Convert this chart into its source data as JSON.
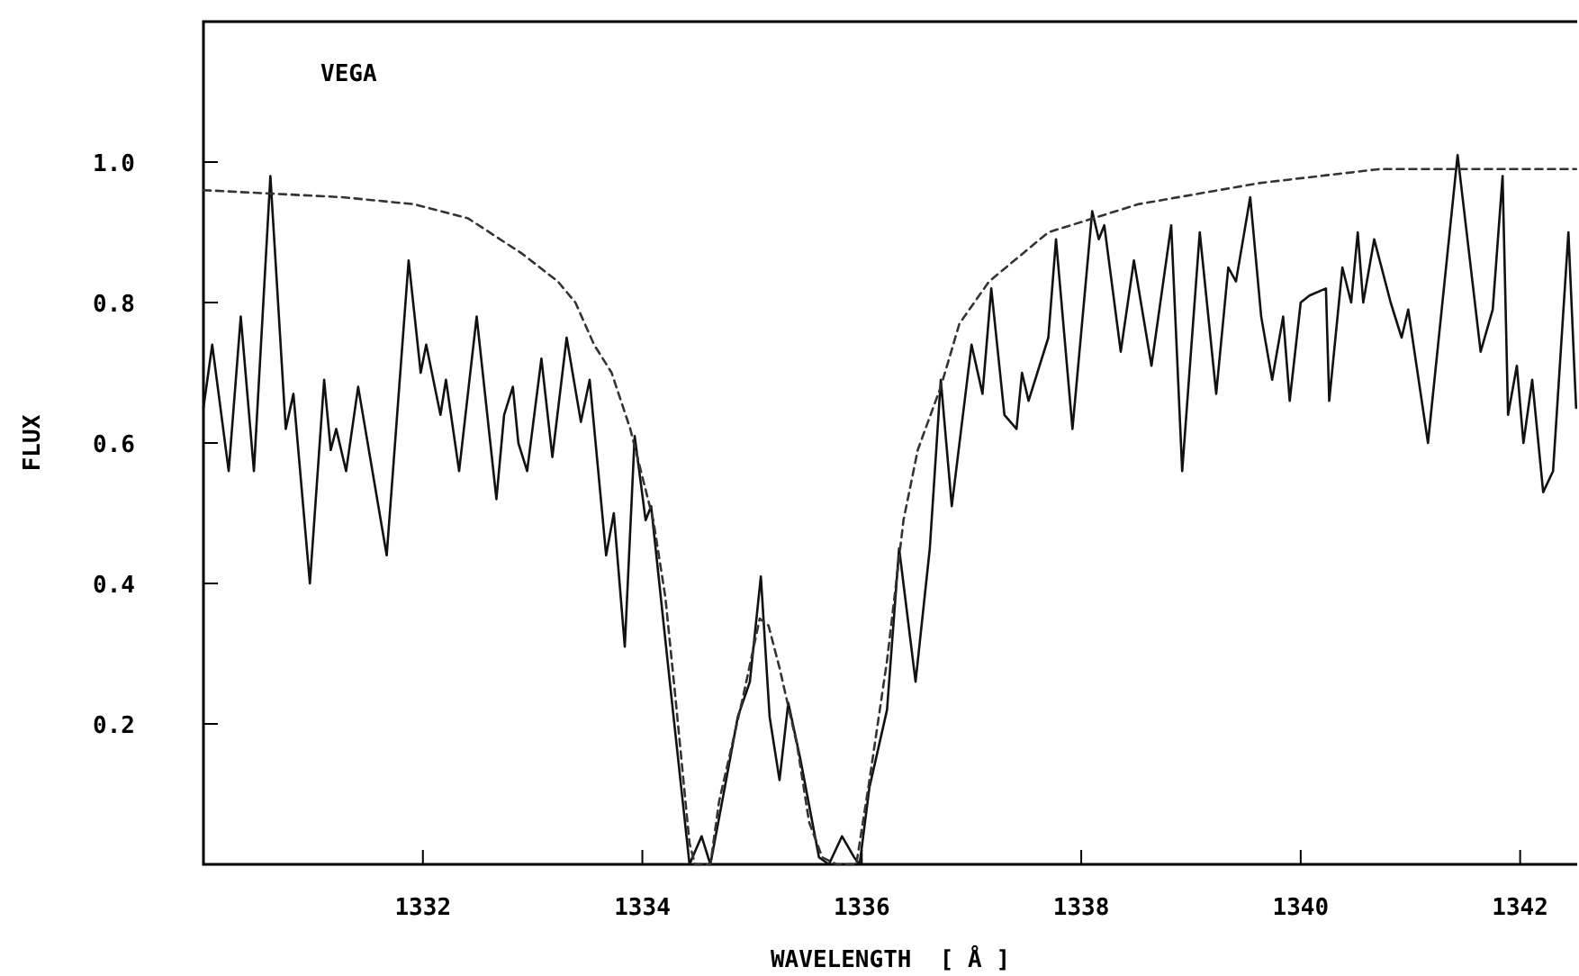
{
  "chart_data": {
    "type": "line",
    "xlabel": "WAVELENGTH  [ Å ]",
    "ylabel": "FLUX",
    "annotations": [
      "VEGA"
    ],
    "xlim": [
      1330,
      1342.52
    ],
    "ylim": [
      0,
      1.2
    ],
    "xticks": [
      1332,
      1334,
      1336,
      1338,
      1340,
      1342
    ],
    "yticks": [
      {
        "value": 0.2,
        "label": "0.2"
      },
      {
        "value": 0.4,
        "label": "0.4"
      },
      {
        "value": 0.6,
        "label": "0.6"
      },
      {
        "value": 0.8,
        "label": "0.8"
      },
      {
        "value": 1,
        "label": "1.0"
      }
    ],
    "marker": "none",
    "series": [
      {
        "color": "#111111",
        "line_style": "solid",
        "x": [
          1330.0,
          1330.08,
          1330.23,
          1330.34,
          1330.46,
          1330.61,
          1330.75,
          1330.82,
          1330.97,
          1331.1,
          1331.16,
          1331.21,
          1331.3,
          1331.41,
          1331.67,
          1331.87,
          1331.98,
          1332.03,
          1332.16,
          1332.21,
          1332.33,
          1332.49,
          1332.67,
          1332.74,
          1332.82,
          1332.87,
          1332.95,
          1333.08,
          1333.18,
          1333.31,
          1333.44,
          1333.52,
          1333.67,
          1333.74,
          1333.84,
          1333.93,
          1334.03,
          1334.08,
          1334.25,
          1334.43,
          1334.54,
          1334.62,
          1334.74,
          1334.87,
          1334.98,
          1335.08,
          1335.16,
          1335.25,
          1335.33,
          1335.44,
          1335.61,
          1335.7,
          1335.82,
          1335.93,
          1335.98,
          1336.07,
          1336.23,
          1336.34,
          1336.49,
          1336.62,
          1336.72,
          1336.82,
          1337.0,
          1337.1,
          1337.18,
          1337.3,
          1337.41,
          1337.46,
          1337.52,
          1337.7,
          1337.77,
          1337.92,
          1338.1,
          1338.16,
          1338.21,
          1338.36,
          1338.48,
          1338.64,
          1338.82,
          1338.92,
          1339.08,
          1339.23,
          1339.34,
          1339.41,
          1339.54,
          1339.64,
          1339.74,
          1339.84,
          1339.9,
          1340.0,
          1340.08,
          1340.23,
          1340.26,
          1340.38,
          1340.46,
          1340.52,
          1340.57,
          1340.67,
          1340.82,
          1340.92,
          1340.98,
          1341.16,
          1341.43,
          1341.64,
          1341.75,
          1341.84,
          1341.89,
          1341.97,
          1342.03,
          1342.11,
          1342.21,
          1342.3,
          1342.44,
          1342.51
        ],
        "values": [
          0.65,
          0.74,
          0.56,
          0.78,
          0.56,
          0.98,
          0.62,
          0.67,
          0.4,
          0.69,
          0.59,
          0.62,
          0.56,
          0.68,
          0.44,
          0.86,
          0.7,
          0.74,
          0.64,
          0.69,
          0.56,
          0.78,
          0.52,
          0.64,
          0.68,
          0.6,
          0.56,
          0.72,
          0.58,
          0.75,
          0.63,
          0.69,
          0.44,
          0.5,
          0.31,
          0.61,
          0.49,
          0.51,
          0.26,
          0,
          0.04,
          0,
          0.1,
          0.21,
          0.26,
          0.41,
          0.21,
          0.12,
          0.23,
          0.15,
          0.01,
          0,
          0.04,
          0.01,
          0,
          0.11,
          0.22,
          0.45,
          0.26,
          0.45,
          0.69,
          0.51,
          0.74,
          0.67,
          0.82,
          0.64,
          0.62,
          0.7,
          0.66,
          0.75,
          0.89,
          0.62,
          0.93,
          0.89,
          0.91,
          0.73,
          0.86,
          0.71,
          0.91,
          0.56,
          0.9,
          0.67,
          0.85,
          0.83,
          0.95,
          0.78,
          0.69,
          0.78,
          0.66,
          0.8,
          0.81,
          0.82,
          0.66,
          0.85,
          0.8,
          0.9,
          0.8,
          0.89,
          0.8,
          0.75,
          0.79,
          0.6,
          1.01,
          0.73,
          0.79,
          0.98,
          0.64,
          0.71,
          0.6,
          0.69,
          0.53,
          0.56,
          0.9,
          0.65
        ]
      },
      {
        "color": "#333333",
        "line_style": "dashed",
        "x": [
          1330.0,
          1331.26,
          1331.92,
          1332.41,
          1332.9,
          1333.23,
          1333.39,
          1333.56,
          1333.72,
          1333.89,
          1334.1,
          1334.21,
          1334.3,
          1334.43,
          1334.48,
          1334.62,
          1334.7,
          1334.92,
          1335.07,
          1335.15,
          1335.25,
          1335.41,
          1335.52,
          1335.64,
          1335.77,
          1335.95,
          1336.07,
          1336.23,
          1336.38,
          1336.51,
          1336.72,
          1336.89,
          1337.16,
          1337.7,
          1338.52,
          1339.62,
          1340.72,
          1342.51
        ],
        "values": [
          0.96,
          0.95,
          0.94,
          0.92,
          0.87,
          0.83,
          0.8,
          0.74,
          0.7,
          0.62,
          0.49,
          0.38,
          0.24,
          0.03,
          0,
          0,
          0.09,
          0.24,
          0.35,
          0.34,
          0.28,
          0.17,
          0.06,
          0.01,
          0,
          0,
          0.12,
          0.29,
          0.49,
          0.59,
          0.68,
          0.77,
          0.83,
          0.9,
          0.94,
          0.97,
          0.99,
          0.99
        ]
      }
    ]
  }
}
